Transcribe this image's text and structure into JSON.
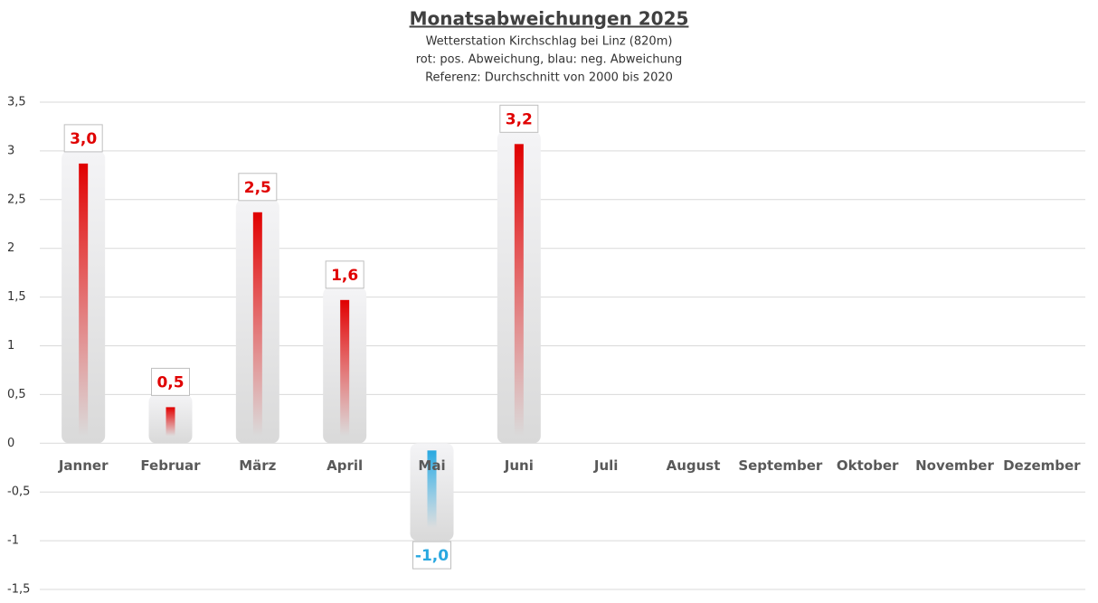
{
  "chart_data": {
    "type": "bar",
    "title": "Monatsabweichungen 2025",
    "subtitle": [
      "Wetterstation Kirchschlag bei Linz (820m)",
      "rot: pos. Abweichung, blau: neg. Abweichung",
      "Referenz: Durchschnitt von 2000 bis 2020"
    ],
    "categories": [
      "Janner",
      "Februar",
      "März",
      "April",
      "Mai",
      "Juni",
      "Juli",
      "August",
      "September",
      "Oktober",
      "November",
      "Dezember"
    ],
    "values": [
      3.0,
      0.5,
      2.5,
      1.6,
      -1.0,
      3.2,
      null,
      null,
      null,
      null,
      null,
      null
    ],
    "value_labels": [
      "3,0",
      "0,5",
      "2,5",
      "1,6",
      "-1,0",
      "3,2",
      null,
      null,
      null,
      null,
      null,
      null
    ],
    "pos_color": "#e00000",
    "neg_color": "#29a8e0",
    "ylim": [
      -1.5,
      3.5
    ],
    "yticks": [
      {
        "value": -1.5,
        "label": "-1,5"
      },
      -1,
      {
        "value": -0.5,
        "label": "-0,5"
      },
      0,
      {
        "value": 0.5,
        "label": "0,5"
      },
      1,
      {
        "value": 1.5,
        "label": "1,5"
      },
      2,
      {
        "value": 2.5,
        "label": "2,5"
      },
      3,
      {
        "value": 3.5,
        "label": "3,5"
      }
    ],
    "grid": true
  }
}
